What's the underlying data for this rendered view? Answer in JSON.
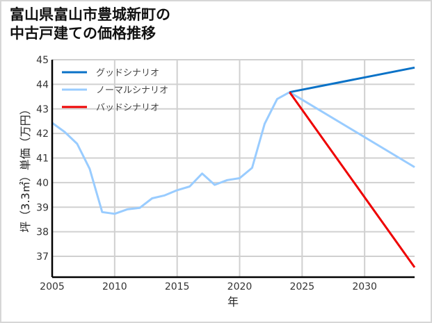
{
  "title": "富山県富山市豊城新町の\n中古戸建ての価格推移",
  "chart_data": {
    "type": "line",
    "title": "富山県富山市豊城新町の中古戸建ての価格推移",
    "xlabel": "年",
    "ylabel": "坪（3.3㎡）単価（万円）",
    "xlim": [
      2005,
      2034
    ],
    "ylim": [
      36.1,
      45
    ],
    "x_ticks": [
      2005,
      2010,
      2015,
      2020,
      2025,
      2030
    ],
    "y_ticks": [
      37,
      38,
      39,
      40,
      41,
      42,
      43,
      44,
      45
    ],
    "grid": true,
    "legend_position": "upper left",
    "series": [
      {
        "name": "グッドシナリオ",
        "color": "#0a72c7",
        "x": [
          2024,
          2034
        ],
        "values": [
          43.68,
          44.68
        ]
      },
      {
        "name": "ノーマルシナリオ",
        "color": "#99ccff",
        "x": [
          2005,
          2006,
          2007,
          2008,
          2009,
          2010,
          2011,
          2012,
          2013,
          2014,
          2015,
          2016,
          2017,
          2018,
          2019,
          2020,
          2021,
          2022,
          2023,
          2024,
          2034
        ],
        "values": [
          42.43,
          42.06,
          41.58,
          40.56,
          38.8,
          38.73,
          38.91,
          38.97,
          39.36,
          39.48,
          39.69,
          39.84,
          40.37,
          39.91,
          40.1,
          40.18,
          40.6,
          42.39,
          43.4,
          43.68,
          40.63
        ]
      },
      {
        "name": "バッドシナリオ",
        "color": "#ee0000",
        "x": [
          2024,
          2034
        ],
        "values": [
          43.68,
          36.55
        ]
      }
    ]
  }
}
